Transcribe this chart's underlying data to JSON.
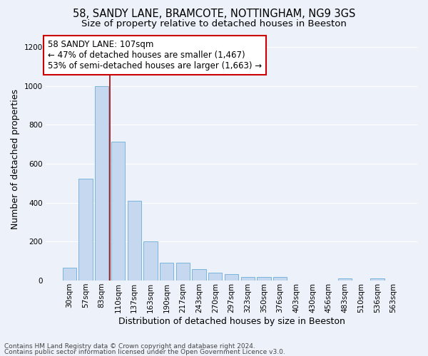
{
  "title_line1": "58, SANDY LANE, BRAMCOTE, NOTTINGHAM, NG9 3GS",
  "title_line2": "Size of property relative to detached houses in Beeston",
  "xlabel": "Distribution of detached houses by size in Beeston",
  "ylabel": "Number of detached properties",
  "categories": [
    "30sqm",
    "57sqm",
    "83sqm",
    "110sqm",
    "137sqm",
    "163sqm",
    "190sqm",
    "217sqm",
    "243sqm",
    "270sqm",
    "297sqm",
    "323sqm",
    "350sqm",
    "376sqm",
    "403sqm",
    "430sqm",
    "456sqm",
    "483sqm",
    "510sqm",
    "536sqm",
    "563sqm"
  ],
  "values": [
    65,
    525,
    1000,
    715,
    410,
    200,
    90,
    90,
    58,
    40,
    32,
    20,
    18,
    20,
    0,
    0,
    0,
    12,
    0,
    12,
    0
  ],
  "bar_color": "#c5d8f0",
  "bar_edge_color": "#6baed6",
  "bar_width": 0.85,
  "red_line_x": 2.5,
  "annotation_text_line1": "58 SANDY LANE: 107sqm",
  "annotation_text_line2": "← 47% of detached houses are smaller (1,467)",
  "annotation_text_line3": "53% of semi-detached houses are larger (1,663) →",
  "ylim": [
    0,
    1250
  ],
  "yticks": [
    0,
    200,
    400,
    600,
    800,
    1000,
    1200
  ],
  "red_line_color": "#aa0000",
  "annotation_box_facecolor": "#ffffff",
  "annotation_box_edgecolor": "#cc0000",
  "footer_line1": "Contains HM Land Registry data © Crown copyright and database right 2024.",
  "footer_line2": "Contains public sector information licensed under the Open Government Licence v3.0.",
  "background_color": "#edf2fa",
  "grid_color": "#ffffff",
  "title_fontsize": 10.5,
  "subtitle_fontsize": 9.5,
  "ylabel_fontsize": 9,
  "xlabel_fontsize": 9,
  "tick_fontsize": 7.5,
  "annotation_fontsize": 8.5,
  "footer_fontsize": 6.5
}
